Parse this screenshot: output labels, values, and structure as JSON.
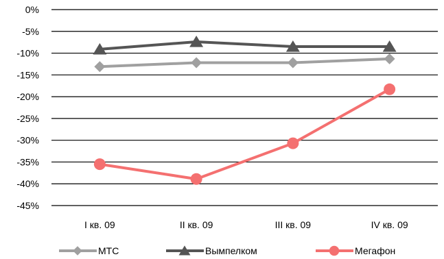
{
  "chart_data": {
    "type": "line",
    "categories": [
      "I кв. 09",
      "II кв. 09",
      "III кв. 09",
      "IV кв. 09"
    ],
    "ylim": [
      -45,
      0
    ],
    "y_ticks": [
      0,
      -5,
      -10,
      -15,
      -20,
      -25,
      -30,
      -35,
      -40,
      -45
    ],
    "y_tick_labels": [
      "0%",
      "-5%",
      "-10%",
      "-15%",
      "-20%",
      "-25%",
      "-30%",
      "-35%",
      "-40%",
      "-45%"
    ],
    "grid": true,
    "legend_position": "bottom",
    "series": [
      {
        "name": "МТС",
        "values": [
          -13.1,
          -12.2,
          -12.2,
          -11.3
        ],
        "color": "#a0a0a0",
        "marker": "diamond"
      },
      {
        "name": "Вымпелком",
        "values": [
          -9.1,
          -7.4,
          -8.5,
          -8.5
        ],
        "color": "#555555",
        "marker": "triangle"
      },
      {
        "name": "Мегафон",
        "values": [
          -35.5,
          -38.9,
          -30.7,
          -18.3
        ],
        "color": "#f47070",
        "marker": "circle"
      }
    ]
  }
}
